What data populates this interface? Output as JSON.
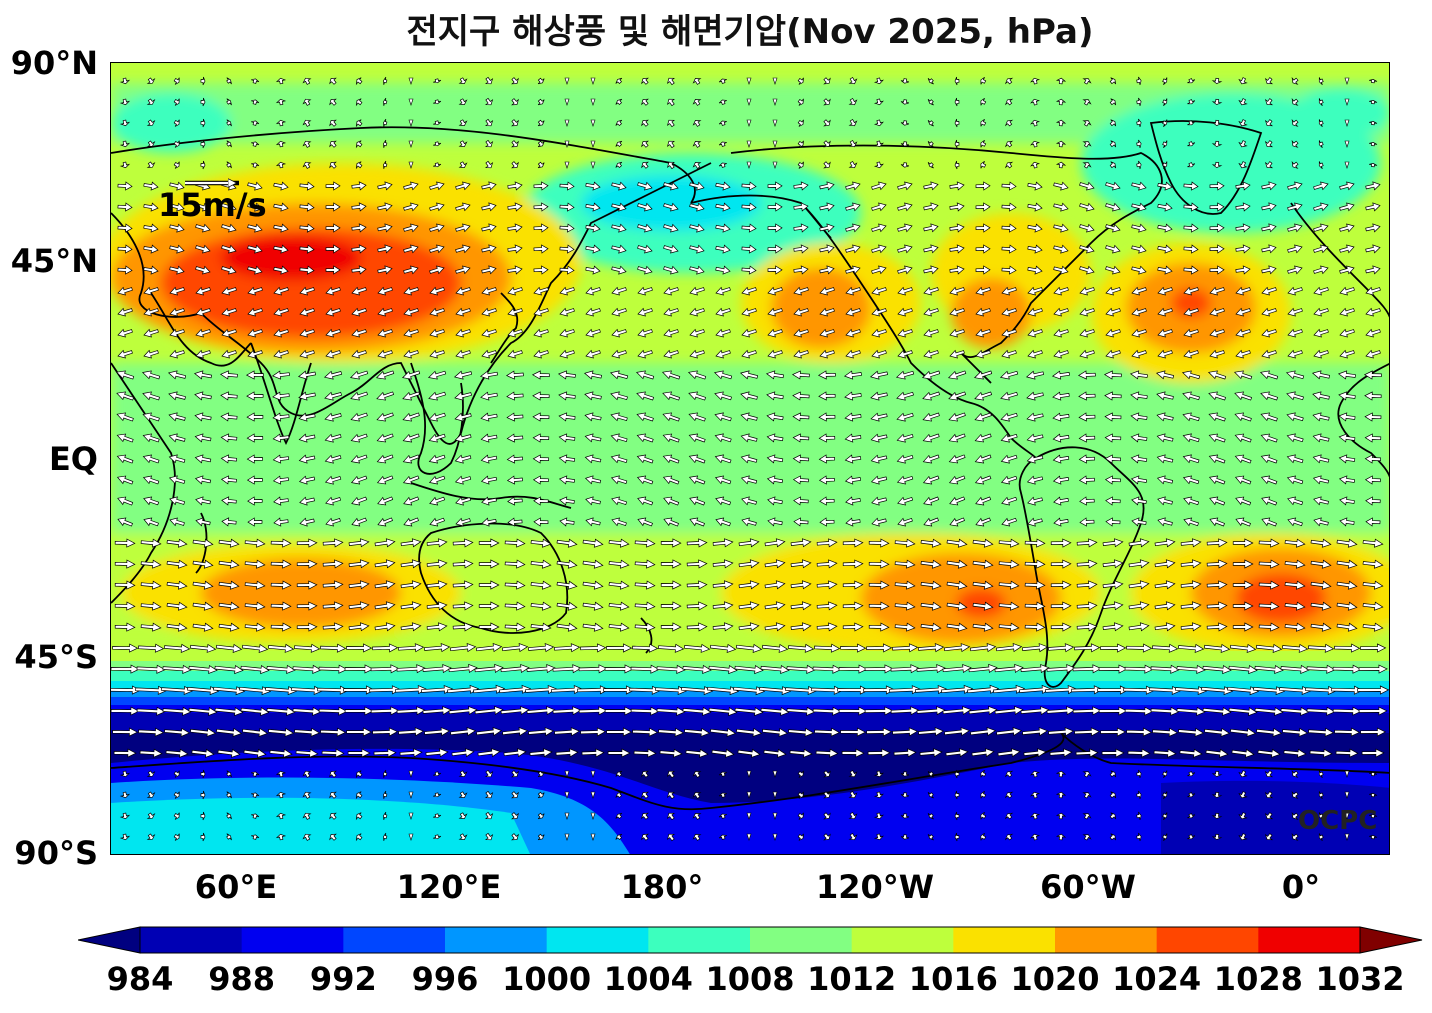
{
  "title": "전지구 해상풍 및 해면기압(Nov 2025, hPa)",
  "lat_labels": [
    "90°N",
    "45°N",
    "EQ",
    "45°S",
    "90°S"
  ],
  "lon_labels": [
    "60°E",
    "120°E",
    "180°",
    "120°W",
    "60°W",
    "0°"
  ],
  "wind_scale_label": "15m/s",
  "credit": "OCPC",
  "colorbar": {
    "labels": [
      "984",
      "988",
      "992",
      "996",
      "1000",
      "1004",
      "1008",
      "1012",
      "1016",
      "1020",
      "1024",
      "1028",
      "1032"
    ],
    "colors": [
      "#000080",
      "#0000b4",
      "#0000f0",
      "#0046ff",
      "#0096ff",
      "#00e6f0",
      "#3cffbe",
      "#82ff82",
      "#beff3c",
      "#fae100",
      "#ff9600",
      "#ff4600",
      "#f00000",
      "#800000"
    ]
  },
  "ocean_color": "#82ff82",
  "land_outline_color": "#000000"
}
